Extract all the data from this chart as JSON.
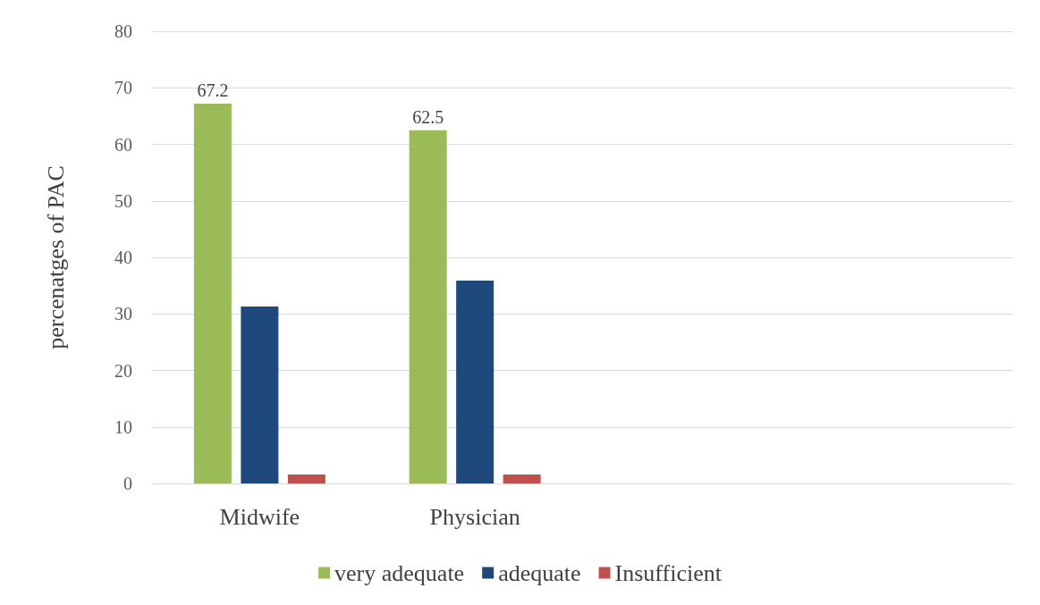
{
  "chart_data": {
    "type": "bar",
    "ylabel": "percenatges of PAC",
    "categories": [
      "Midwife",
      "Physician",
      null,
      null
    ],
    "series": [
      {
        "name": "very adequate",
        "color": "#9bbb59",
        "values": [
          67.2,
          62.5,
          null,
          null
        ],
        "value_labels": [
          "67.2",
          "62.5",
          null,
          null
        ]
      },
      {
        "name": "adequate",
        "color": "#1f497d",
        "values": [
          31.3,
          35.9,
          null,
          null
        ]
      },
      {
        "name": "Insufficient",
        "color": "#c0504d",
        "values": [
          1.6,
          1.6,
          null,
          null
        ]
      }
    ],
    "ylim": [
      0,
      80
    ],
    "yticks": [
      0,
      10,
      20,
      30,
      40,
      50,
      60,
      70,
      80
    ],
    "grid": "y",
    "legend": "bottom"
  }
}
